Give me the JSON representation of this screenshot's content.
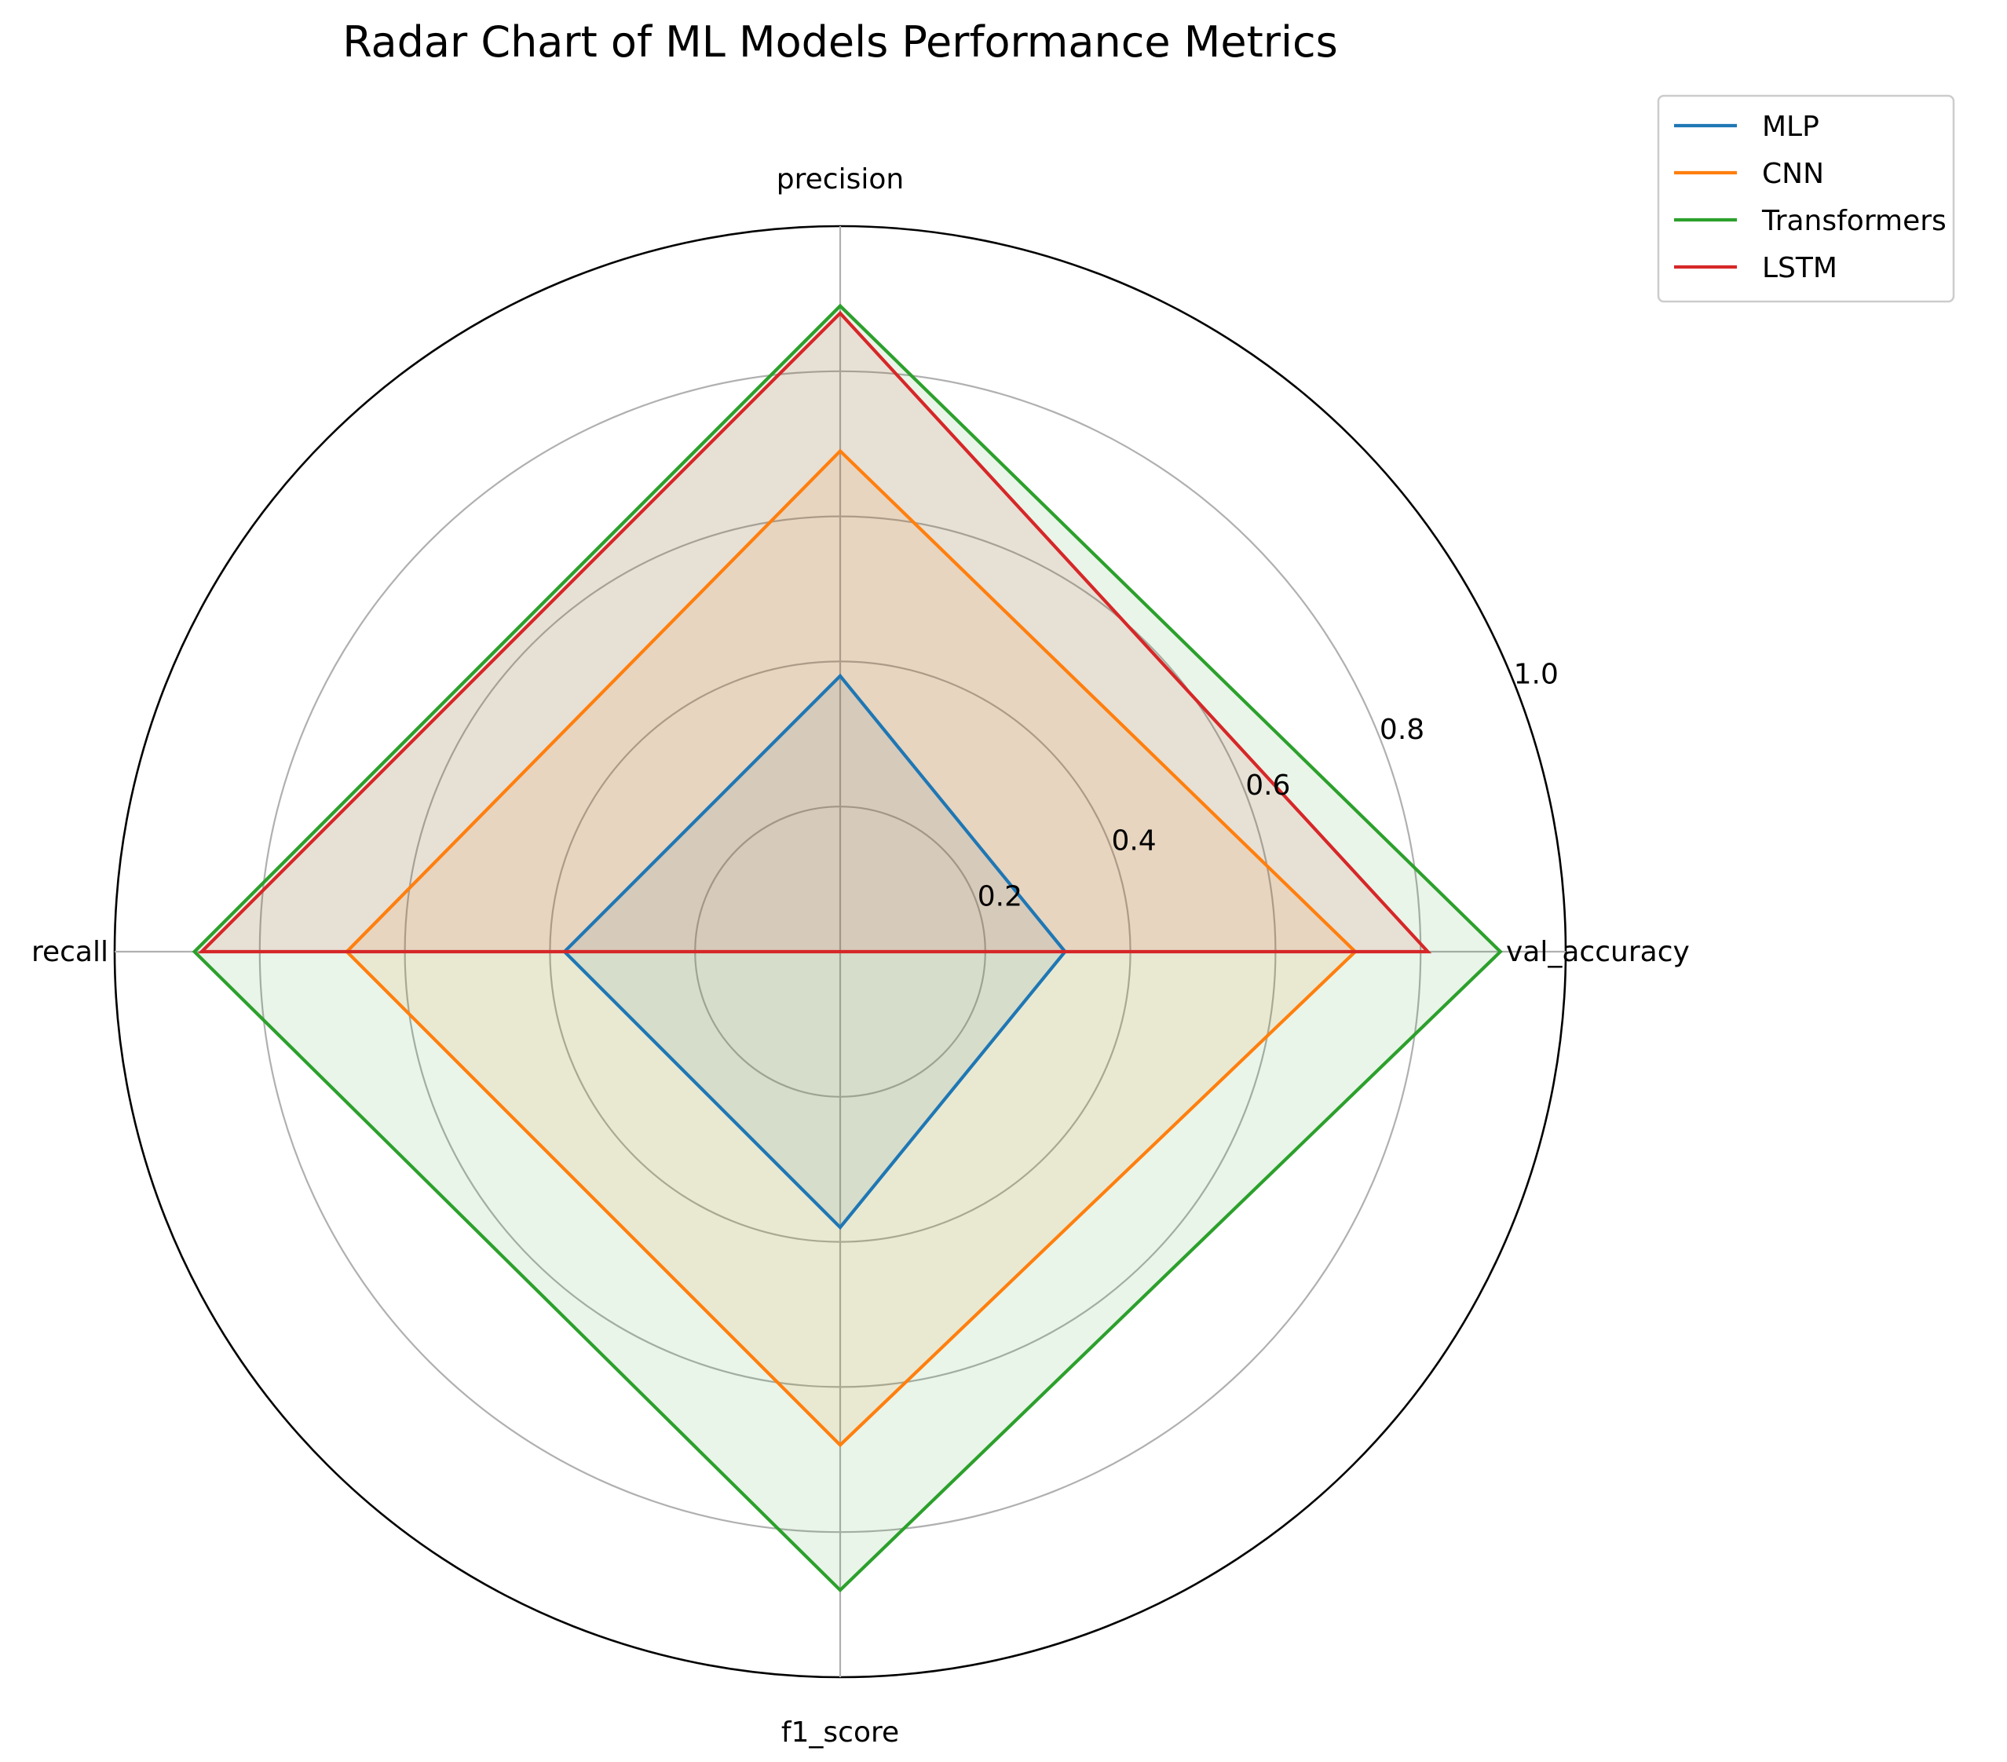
{
  "chart_data": {
    "type": "radar",
    "title": "Radar Chart of ML Models Performance Metrics",
    "axes": [
      "val_accuracy",
      "precision",
      "recall",
      "f1_score"
    ],
    "rlim": [
      0,
      1.0
    ],
    "r_ticks": [
      0.2,
      0.4,
      0.6,
      0.8,
      1.0
    ],
    "r_tick_labels": [
      "0.2",
      "0.4",
      "0.6",
      "0.8",
      "1.0"
    ],
    "grid": true,
    "legend_position": "upper-right-outside",
    "series": [
      {
        "name": "MLP",
        "values": [
          0.31,
          0.38,
          0.38,
          0.38
        ],
        "color": "#1f77b4"
      },
      {
        "name": "CNN",
        "values": [
          0.71,
          0.69,
          0.68,
          0.68
        ],
        "color": "#ff7f0e"
      },
      {
        "name": "Transformers",
        "values": [
          0.91,
          0.89,
          0.89,
          0.88
        ],
        "color": "#2ca02c"
      },
      {
        "name": "LSTM",
        "values": [
          0.81,
          0.88,
          0.88,
          0.0
        ],
        "color": "#d62728"
      }
    ]
  }
}
